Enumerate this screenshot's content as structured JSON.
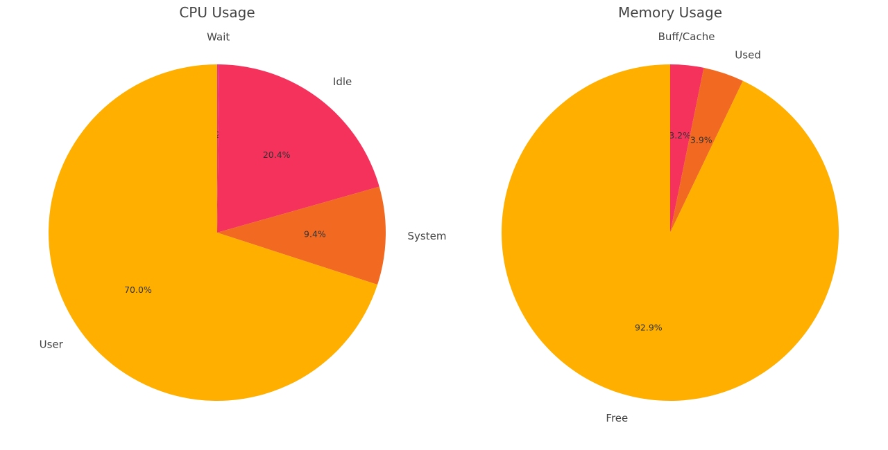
{
  "chart_data": [
    {
      "type": "pie",
      "title": "CPU Usage",
      "start_angle_deg": 90,
      "direction": "clockwise",
      "slices": [
        {
          "label": "Wait",
          "value": 0.2,
          "pct_label": "0.2%",
          "color": "#e8368f"
        },
        {
          "label": "Idle",
          "value": 20.4,
          "pct_label": "20.4%",
          "color": "#f5325c"
        },
        {
          "label": "System",
          "value": 9.4,
          "pct_label": "9.4%",
          "color": "#f26a22"
        },
        {
          "label": "User",
          "value": 70.0,
          "pct_label": "70.0%",
          "color": "#ffaf00"
        }
      ]
    },
    {
      "type": "pie",
      "title": "Memory Usage",
      "start_angle_deg": 90,
      "direction": "clockwise",
      "slices": [
        {
          "label": "Buff/Cache",
          "value": 3.2,
          "pct_label": "3.2%",
          "color": "#f5325c"
        },
        {
          "label": "Used",
          "value": 3.9,
          "pct_label": "3.9%",
          "color": "#f26a22"
        },
        {
          "label": "Free",
          "value": 92.9,
          "pct_label": "92.9%",
          "color": "#ffaf00"
        }
      ]
    }
  ]
}
